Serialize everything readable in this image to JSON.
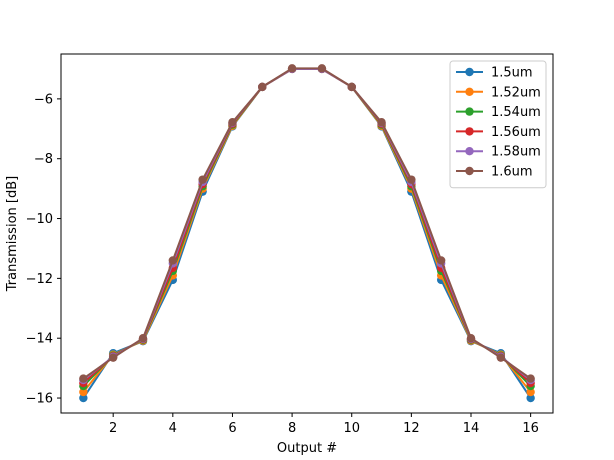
{
  "chart_data": {
    "type": "line",
    "title": "",
    "xlabel": "Output #",
    "ylabel": "Transmission [dB]",
    "xlim": [
      0.25,
      16.75
    ],
    "ylim": [
      -16.5,
      -4.5
    ],
    "xticks": [
      2,
      4,
      6,
      8,
      10,
      12,
      14,
      16
    ],
    "yticks": [
      -16,
      -14,
      -12,
      -10,
      -8,
      -6
    ],
    "grid": false,
    "legend_position": "top-right",
    "x": [
      1,
      2,
      3,
      4,
      5,
      6,
      7,
      8,
      9,
      10,
      11,
      12,
      13,
      14,
      15,
      16
    ],
    "series": [
      {
        "name": "1.5um",
        "color": "#1f77b4",
        "values": [
          -16.0,
          -14.5,
          -14.1,
          -12.05,
          -9.1,
          -6.92,
          -5.6,
          -5.0,
          -5.0,
          -5.6,
          -6.92,
          -9.1,
          -12.05,
          -14.1,
          -14.5,
          -16.0
        ]
      },
      {
        "name": "1.52um",
        "color": "#ff7f0e",
        "values": [
          -15.8,
          -14.55,
          -14.08,
          -11.9,
          -9.0,
          -6.9,
          -5.6,
          -5.0,
          -5.0,
          -5.6,
          -6.9,
          -9.0,
          -11.9,
          -14.08,
          -14.55,
          -15.8
        ]
      },
      {
        "name": "1.54um",
        "color": "#2ca02c",
        "values": [
          -15.6,
          -14.58,
          -14.05,
          -11.75,
          -8.92,
          -6.86,
          -5.6,
          -5.0,
          -5.0,
          -5.6,
          -6.86,
          -8.92,
          -11.75,
          -14.05,
          -14.58,
          -15.6
        ]
      },
      {
        "name": "1.56um",
        "color": "#d62728",
        "values": [
          -15.5,
          -14.6,
          -14.03,
          -11.65,
          -8.85,
          -6.83,
          -5.6,
          -5.0,
          -5.0,
          -5.6,
          -6.83,
          -8.85,
          -11.65,
          -14.03,
          -14.6,
          -15.5
        ]
      },
      {
        "name": "1.58um",
        "color": "#9467bd",
        "values": [
          -15.4,
          -14.62,
          -14.02,
          -11.5,
          -8.78,
          -6.8,
          -5.6,
          -5.0,
          -5.0,
          -5.6,
          -6.8,
          -8.78,
          -11.5,
          -14.02,
          -14.62,
          -15.4
        ]
      },
      {
        "name": "1.6um",
        "color": "#8c564b",
        "values": [
          -15.35,
          -14.65,
          -14.0,
          -11.4,
          -8.7,
          -6.78,
          -5.6,
          -4.98,
          -4.98,
          -5.6,
          -6.78,
          -8.7,
          -11.4,
          -14.0,
          -14.65,
          -15.35
        ]
      }
    ]
  }
}
